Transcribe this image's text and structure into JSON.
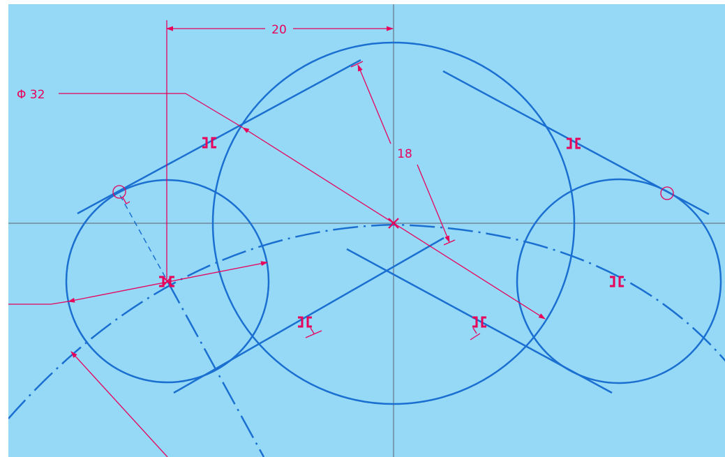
{
  "colors": {
    "background": "#95d9f7",
    "frame": "#ffffff",
    "geometry": "#1a6fd0",
    "dimension": "#e8005a",
    "reference_axis": "#5f5f6f"
  },
  "dimensions": {
    "horizontal_distance": "20",
    "main_circle_diameter": "Φ 32",
    "radius": "18"
  },
  "icons": {
    "relation": "parallel-relation-icon",
    "tangent": "tangent-relation-icon",
    "perpendicular": "perpendicular-relation-icon",
    "center_point": "center-point-icon"
  }
}
